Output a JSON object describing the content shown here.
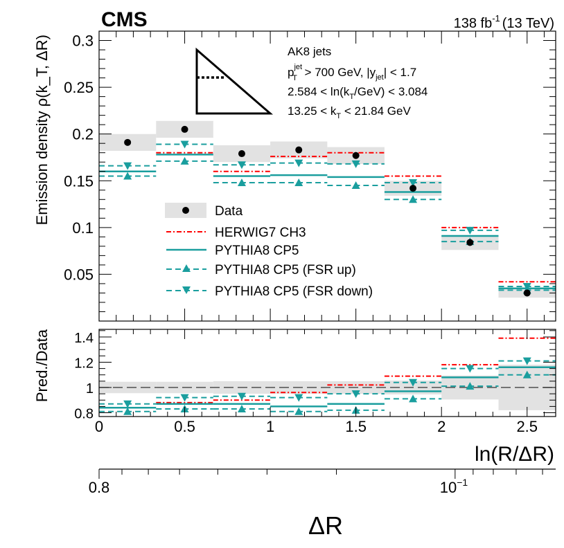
{
  "header": {
    "experiment": "CMS",
    "lumi": "138 fb",
    "lumi_exp": "-1",
    "energy": "(13 TeV)"
  },
  "annotation": {
    "line1": "AK8 jets",
    "line2": {
      "p": "p",
      "sup": "jet",
      "sub": "T",
      "rest1": " > 700 GeV, |y",
      "sub2": "jet",
      "rest2": "| < 1.7"
    },
    "line3": {
      "a": "2.584 < ln(k",
      "sub": "T",
      "b": "/GeV) < 3.084"
    },
    "line4": {
      "a": "13.25 < k",
      "sub": "T",
      "b": " < 21.84 GeV"
    }
  },
  "legend": [
    {
      "key": "data",
      "label": "Data"
    },
    {
      "key": "herwig",
      "label": "HERWIG7 CH3"
    },
    {
      "key": "pythia",
      "label": "PYTHIA8 CP5"
    },
    {
      "key": "fsrup",
      "label": "PYTHIA8 CP5 (FSR up)"
    },
    {
      "key": "fsrdown",
      "label": "PYTHIA8 CP5 (FSR down)"
    }
  ],
  "colors": {
    "data": "#000000",
    "band": "#e2e2e2",
    "herwig": "#ff0000",
    "pythia": "#1a9e9e"
  },
  "chart_data": [
    {
      "type": "line",
      "title": "",
      "xlabel": "ln(R/ΔR)",
      "ylabel": "Emission density ρ(k_T, ΔR)",
      "xlim": [
        0,
        2.667
      ],
      "ylim": [
        0,
        0.31
      ],
      "x_ticks": [
        "0",
        "0.5",
        "1",
        "1.5",
        "2",
        "2.5"
      ],
      "y_ticks": [
        "0.05",
        "0.1",
        "0.15",
        "0.2",
        "0.25",
        "0.3"
      ],
      "bin_edges": [
        0,
        0.333,
        0.667,
        1.0,
        1.333,
        1.667,
        2.0,
        2.333,
        2.667
      ],
      "series": [
        {
          "name": "Data",
          "values": [
            0.191,
            0.205,
            0.179,
            0.183,
            0.177,
            0.142,
            0.084,
            0.03
          ],
          "band_low": [
            0.182,
            0.196,
            0.17,
            0.174,
            0.168,
            0.134,
            0.076,
            0.025
          ],
          "band_high": [
            0.2,
            0.214,
            0.188,
            0.192,
            0.186,
            0.15,
            0.092,
            0.035
          ]
        },
        {
          "name": "HERWIG7 CH3",
          "values": [
            0.16,
            0.18,
            0.16,
            0.176,
            0.18,
            0.155,
            0.1,
            0.042
          ]
        },
        {
          "name": "PYTHIA8 CP5",
          "values": [
            0.16,
            0.178,
            0.155,
            0.156,
            0.154,
            0.138,
            0.091,
            0.035
          ]
        },
        {
          "name": "PYTHIA8 CP5 (FSR up)",
          "values": [
            0.155,
            0.171,
            0.148,
            0.148,
            0.145,
            0.13,
            0.085,
            0.033
          ]
        },
        {
          "name": "PYTHIA8 CP5 (FSR down)",
          "values": [
            0.166,
            0.189,
            0.167,
            0.169,
            0.168,
            0.148,
            0.097,
            0.037
          ]
        }
      ]
    },
    {
      "type": "line",
      "title": "",
      "xlabel": "ln(R/ΔR)",
      "ylabel": "Pred./Data",
      "xlim": [
        0,
        2.667
      ],
      "ylim": [
        0.77,
        1.46
      ],
      "y_ticks": [
        "0.8",
        "1",
        "1.2",
        "1.4"
      ],
      "bin_edges": [
        0,
        0.333,
        0.667,
        1.0,
        1.333,
        1.667,
        2.0,
        2.333,
        2.667
      ],
      "series": [
        {
          "name": "Data uncertainty",
          "band_low": [
            0.955,
            0.955,
            0.95,
            0.95,
            0.95,
            0.945,
            0.905,
            0.82
          ],
          "band_high": [
            1.045,
            1.045,
            1.05,
            1.05,
            1.05,
            1.055,
            1.095,
            1.18
          ]
        },
        {
          "name": "HERWIG7 CH3",
          "values": [
            0.84,
            0.88,
            0.9,
            0.96,
            1.02,
            1.09,
            1.18,
            1.39
          ]
        },
        {
          "name": "PYTHIA8 CP5",
          "values": [
            0.84,
            0.87,
            0.87,
            0.85,
            0.87,
            0.97,
            1.08,
            1.16
          ]
        },
        {
          "name": "PYTHIA8 CP5 (FSR up)",
          "values": [
            0.81,
            0.83,
            0.83,
            0.81,
            0.82,
            0.91,
            1.01,
            1.1
          ]
        },
        {
          "name": "PYTHIA8 CP5 (FSR down)",
          "values": [
            0.87,
            0.92,
            0.93,
            0.92,
            0.95,
            1.04,
            1.15,
            1.21
          ]
        }
      ]
    }
  ],
  "secondary_axis": {
    "label": "ΔR",
    "tick_left": "0.8",
    "tick_mid_base": "10",
    "tick_mid_exp": "−1"
  }
}
